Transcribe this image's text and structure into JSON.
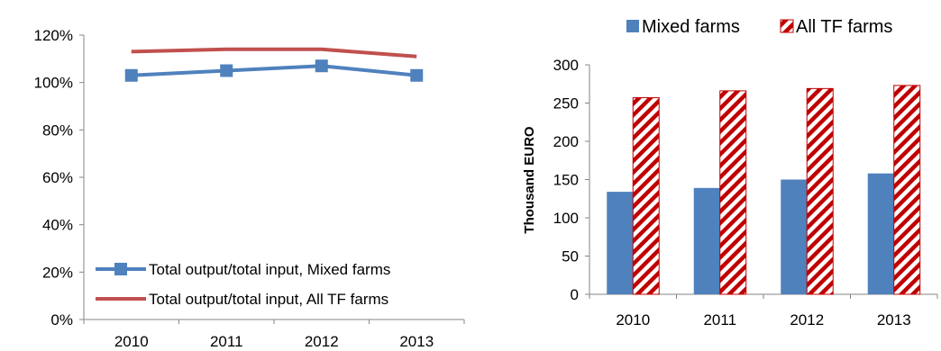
{
  "colors": {
    "mixed": "#4F81BD",
    "all_tf": "#C0504D",
    "axis": "#868686"
  },
  "chart_data": [
    {
      "type": "line",
      "categories": [
        "2010",
        "2011",
        "2012",
        "2013"
      ],
      "series": [
        {
          "name": "Total output/total input, Mixed farms",
          "values": [
            103,
            105,
            107,
            103
          ],
          "marker": "square",
          "color": "#4F81BD"
        },
        {
          "name": "Total output/total input, All TF farms",
          "values": [
            113,
            114,
            114,
            111
          ],
          "marker": "none",
          "color": "#C0504D"
        }
      ],
      "ylim": [
        0,
        120
      ],
      "yticks": [
        "0%",
        "20%",
        "40%",
        "60%",
        "80%",
        "100%",
        "120%"
      ],
      "legend": "bottom-left",
      "grid": false
    },
    {
      "type": "bar",
      "categories": [
        "2010",
        "2011",
        "2012",
        "2013"
      ],
      "series": [
        {
          "name": "Mixed farms",
          "values": [
            134,
            139,
            150,
            158
          ],
          "color": "#4F81BD",
          "pattern": "solid"
        },
        {
          "name": "All TF farms",
          "values": [
            257,
            266,
            269,
            273
          ],
          "color": "#C00000",
          "pattern": "diagonal-stripes"
        }
      ],
      "ylabel": "Thousand EURO",
      "ylim": [
        0,
        300
      ],
      "yticks": [
        "0",
        "50",
        "100",
        "150",
        "200",
        "250",
        "300"
      ],
      "legend": "top",
      "grid": false
    }
  ]
}
